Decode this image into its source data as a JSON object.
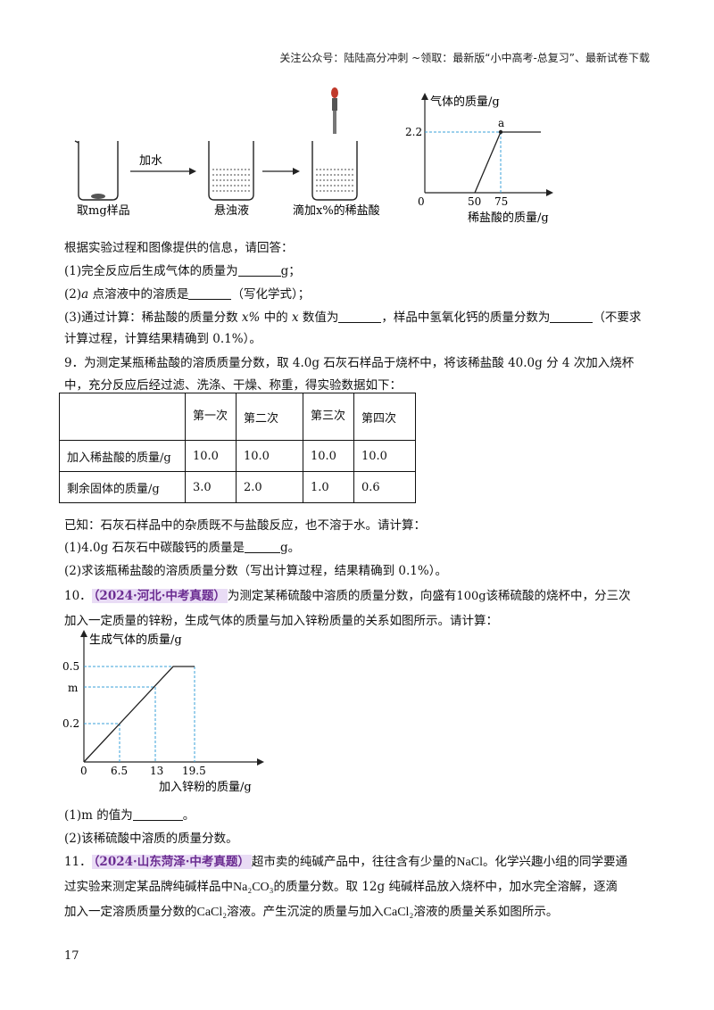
{
  "header": "关注公众号：陆陆高分冲刺 ~领取：最新版“小中高考-总复习”、最新试卷下载",
  "fig1": {
    "beakers": [
      "取mg样品",
      "悬浊液",
      "滴加x%的稀盐酸"
    ],
    "arrow_label": "加水",
    "graph": {
      "ylabel": "气体的质量/g",
      "xlabel": "稀盐酸的质量/g",
      "origin": "0",
      "y_tick": "2.2",
      "x_ticks": [
        "50",
        "75"
      ],
      "point": "a"
    }
  },
  "q8": {
    "intro": "根据实验过程和图像提供的信息，请回答：",
    "p1_a": "(1)完全反应后生成气体的质量为",
    "p1_b": "g；",
    "p2_a": "(2)",
    "p2_var": "a",
    "p2_b": " 点溶液中的溶质是",
    "p2_c": "（写化学式）；",
    "p3_a": "(3)通过计算：稀盐酸的质量分数 ",
    "p3_var": "x%",
    "p3_b": " 中的 ",
    "p3_var2": "x",
    "p3_c": " 数值为",
    "p3_d": "，样品中氢氧化钙的质量分数为",
    "p3_e": "（不要求",
    "p3_f": "计算过程，计算结果精确到 0.1%）。"
  },
  "q9": {
    "line1": "9．为测定某瓶稀盐酸的溶质质量分数，取 4.0g 石灰石样品于烧杯中，将该稀盐酸 40.0g 分 4 次加入烧杯",
    "line2": "中，充分反应后经过滤、洗涤、干燥、称重，得实验数据如下：",
    "table": {
      "headers": [
        "",
        "第一次",
        "第二次",
        "第三次",
        "第四次"
      ],
      "row1": [
        "加入稀盐酸的质量/g",
        "10.0",
        "10.0",
        "10.0",
        "10.0"
      ],
      "row2": [
        "剩余固体的质量/g",
        "3.0",
        "2.0",
        "1.0",
        "0.6"
      ]
    },
    "after": "已知：石灰石样品中的杂质既不与盐酸反应，也不溶于水。请计算：",
    "p1_a": "(1)4.0g 石灰石中碳酸钙的质量是",
    "p1_b": "g。",
    "p2": "(2)求该瓶稀盐酸的溶质质量分数（写出计算过程，结果精确到 0.1%）。"
  },
  "q10": {
    "num": "10．",
    "tag": "（2024·河北·中考真题）",
    "line1_a": "为测定某稀硫酸中溶质的质量分数，向盛有",
    "line1_mass": "100g",
    "line1_b": "该稀硫酸的烧杯中，分三次",
    "line2": "加入一定质量的锌粉，生成气体的质量与加入锌粉质量的关系如图所示。请计算：",
    "graph": {
      "ylabel": "生成气体的质量/g",
      "xlabel": "加入锌粉的质量/g",
      "y_ticks": [
        "0.5",
        "m",
        "0.2"
      ],
      "x_ticks": [
        "6.5",
        "13",
        "19.5"
      ],
      "origin": "0"
    },
    "p1_a": "(1)m 的值为",
    "p1_b": "。",
    "p2": "(2)该稀硫酸中溶质的质量分数。"
  },
  "q11": {
    "num": "11．",
    "tag": "（2024·山东菏泽·中考真题）",
    "line1_a": "超市卖的纯碱产品中，往往含有少量的",
    "nacl": "NaCl",
    "line1_b": "。化学兴趣小组的同学要通",
    "line2_a": "过实验来测定某品牌纯碱样品中",
    "na2co3": "Na₂CO₃",
    "line2_b": "的质量分数。取 12g 纯碱样品放入烧杯中，加水完全溶解，逐滴",
    "line3_a": "加入一定溶质质量分数的",
    "cacl2": "CaCl₂",
    "line3_b": "溶液。产生沉淀的质量与加入",
    "line3_c": "溶液的质量关系如图所示。"
  },
  "page_number": "17",
  "colors": {
    "accent_bg": "#e9dcf5",
    "accent_text": "#6b2c91",
    "guide": "#3aa0d8"
  }
}
